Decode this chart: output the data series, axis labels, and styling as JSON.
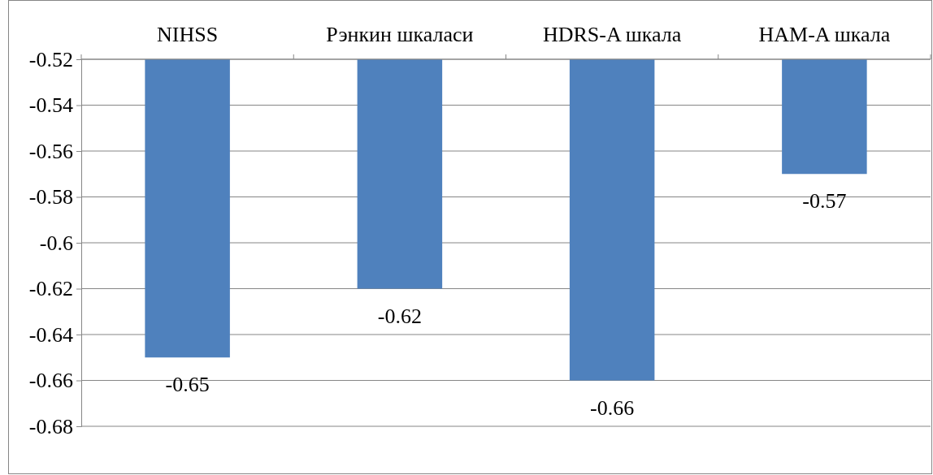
{
  "chart_data": {
    "type": "bar",
    "categories": [
      "NIHSS",
      "Рэнкин шкаласи",
      "HDRS-A шкала",
      "HAM-A шкала"
    ],
    "values": [
      -0.65,
      -0.62,
      -0.66,
      -0.57
    ],
    "color": "#4f81bd",
    "ylim": [
      -0.68,
      -0.52
    ],
    "yticks": [
      -0.52,
      -0.54,
      -0.56,
      -0.58,
      -0.6,
      -0.62,
      -0.64,
      -0.66,
      -0.68
    ],
    "grid": "y",
    "data_labels": true
  }
}
